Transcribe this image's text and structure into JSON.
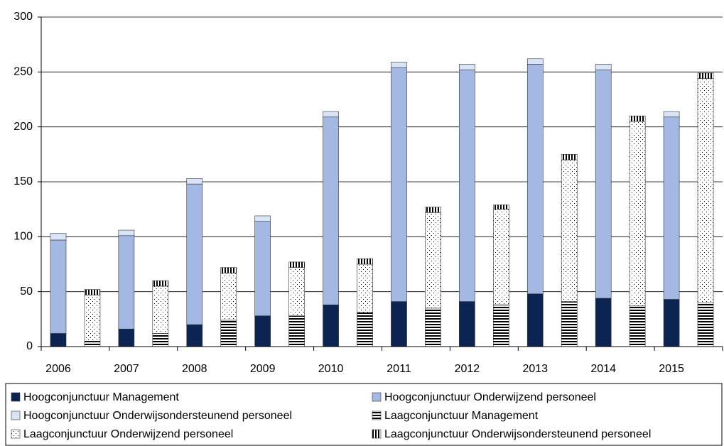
{
  "chart_data": {
    "type": "stacked-bar",
    "categories": [
      "2006",
      null,
      "2007",
      null,
      "2008",
      null,
      "2009",
      null,
      "2010",
      null,
      "2011",
      null,
      "2012",
      null,
      "2013",
      null,
      "2014",
      null,
      "2015",
      null
    ],
    "series": [
      {
        "name": "Hoogconjunctuur Management",
        "color": "#0b2452",
        "pattern": "solid",
        "values": [
          12,
          null,
          16,
          null,
          20,
          null,
          28,
          null,
          38,
          null,
          41,
          null,
          41,
          null,
          48,
          null,
          44,
          null,
          43,
          null
        ]
      },
      {
        "name": "Hoogconjunctuur Onderwijzend personeel",
        "color": "#a3b9e3",
        "pattern": "solid",
        "values": [
          85,
          null,
          85,
          null,
          128,
          null,
          86,
          null,
          171,
          null,
          213,
          null,
          211,
          null,
          209,
          null,
          208,
          null,
          166,
          null
        ]
      },
      {
        "name": "Hoogconjunctuur Onderwijsondersteunend personeel",
        "color": "#d9e5f6",
        "pattern": "solid",
        "values": [
          6,
          null,
          5,
          null,
          5,
          null,
          5,
          null,
          5,
          null,
          5,
          null,
          5,
          null,
          5,
          null,
          5,
          null,
          5,
          null
        ]
      },
      {
        "name": "Laagconjunctuur Management",
        "color": "#000000",
        "pattern": "horizontal-stripes",
        "values": [
          null,
          5,
          null,
          12,
          null,
          24,
          null,
          28,
          null,
          31,
          null,
          35,
          null,
          38,
          null,
          41,
          null,
          37,
          null,
          40
        ]
      },
      {
        "name": "Laagconjunctuur Onderwijzend personeel",
        "color": "#000000",
        "pattern": "dots",
        "values": [
          null,
          42,
          null,
          43,
          null,
          43,
          null,
          44,
          null,
          44,
          null,
          87,
          null,
          87,
          null,
          129,
          null,
          168,
          null,
          204
        ]
      },
      {
        "name": "Laagconjunctuur Onderwijsondersteunend personeel",
        "color": "#000000",
        "pattern": "vertical-stripes",
        "values": [
          null,
          5,
          null,
          5,
          null,
          5,
          null,
          5,
          null,
          5,
          null,
          5,
          null,
          4,
          null,
          5,
          null,
          5,
          null,
          5
        ]
      }
    ],
    "ylim": [
      0,
      300
    ],
    "yticks": [
      0,
      50,
      100,
      150,
      200,
      250,
      300
    ],
    "grid": true,
    "legend": "bottom"
  }
}
